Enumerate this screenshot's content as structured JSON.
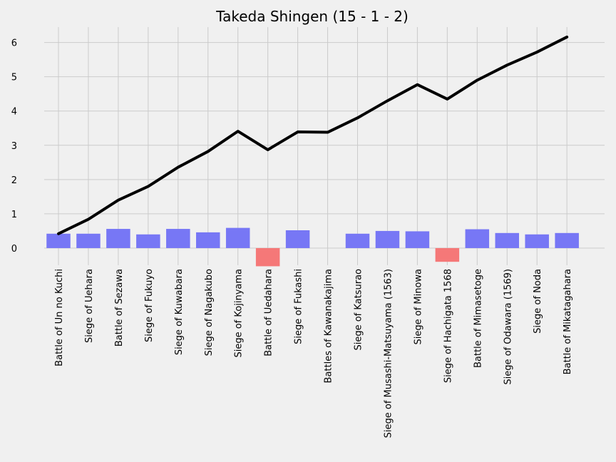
{
  "chart_data": {
    "type": "bar",
    "title": "Takeda Shingen (15 - 1 - 2)",
    "xlabel": "",
    "ylabel": "",
    "ylim": [
      -0.5,
      6.45
    ],
    "yticks": [
      0,
      1,
      2,
      3,
      4,
      5,
      6
    ],
    "grid": true,
    "categories": [
      "Battle of Un no Kuchi",
      "Siege of Uehara",
      "Battle of Sezawa",
      "Siege of Fukuyo",
      "Siege of Kuwabara",
      "Siege of Nagakubo",
      "Siege of Kojinyama",
      "Battle of Uedahara",
      "Siege of Fukashi",
      "Battles of Kawanakajima",
      "Siege of Katsurao",
      "Siege of Musashi-Matsuyama (1563)",
      "Siege of Minowa",
      "Siege of Hachigata 1568",
      "Battle of Mimasetoge",
      "Siege of Odawara (1569)",
      "Siege of Noda",
      "Battle of Mikatagahara"
    ],
    "series": [
      {
        "kind": "bar",
        "values": [
          0.42,
          0.42,
          0.56,
          0.4,
          0.56,
          0.46,
          0.59,
          -0.53,
          0.52,
          0.0,
          0.42,
          0.5,
          0.49,
          -0.4,
          0.55,
          0.44,
          0.4,
          0.44
        ],
        "positive_color": "#7777f5",
        "negative_color": "#f57878"
      },
      {
        "kind": "line",
        "values": [
          0.42,
          0.84,
          1.4,
          1.8,
          2.36,
          2.82,
          3.41,
          2.87,
          3.39,
          3.38,
          3.8,
          4.3,
          4.77,
          4.35,
          4.9,
          5.34,
          5.72,
          6.16
        ],
        "color": "#000000"
      }
    ]
  }
}
